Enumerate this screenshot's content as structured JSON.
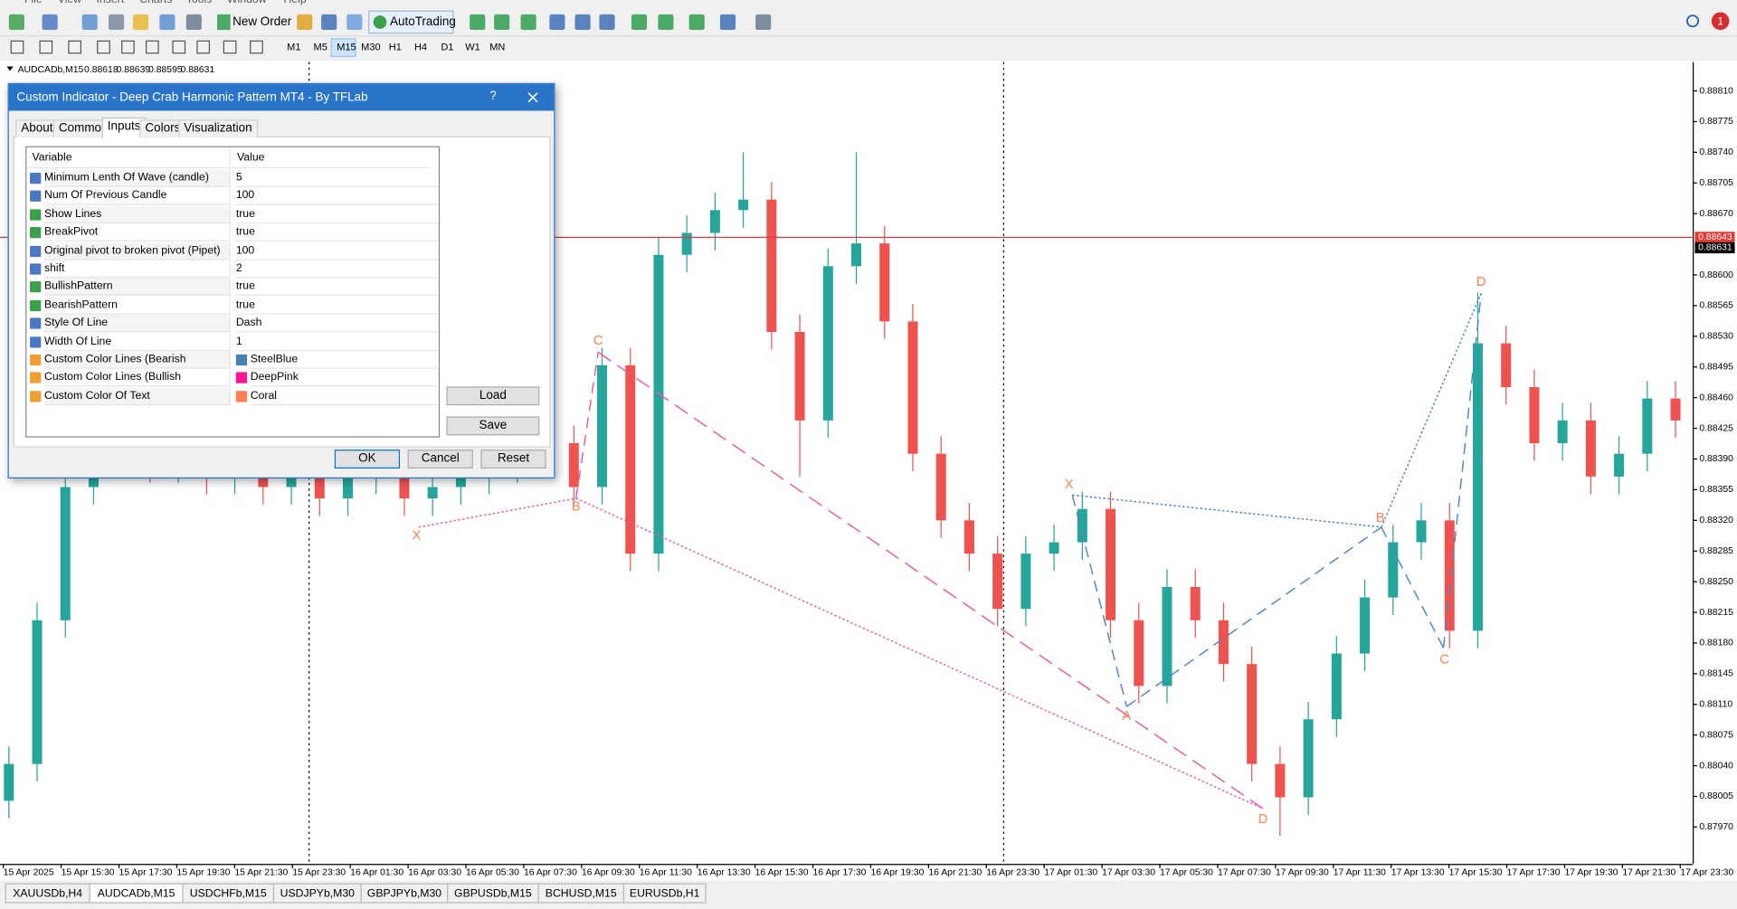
{
  "menu": [
    "File",
    "View",
    "Insert",
    "Charts",
    "Tools",
    "Window",
    "Help"
  ],
  "toolbar": {
    "new_order": "New Order",
    "autotrading": "AutoTrading",
    "timeframes": [
      "M1",
      "M5",
      "M15",
      "M30",
      "H1",
      "H4",
      "D1",
      "W1",
      "MN"
    ],
    "notifications": "1"
  },
  "chart_data": {
    "type": "candlestick",
    "symbol": "AUDCADb,M15",
    "ohlc": [
      "0.88618",
      "0.88639",
      "0.88595",
      "0.88631"
    ],
    "open": [
      0.88,
      0.88042,
      0.88206,
      0.88358,
      0.88408,
      0.88434,
      0.88383,
      0.88408,
      0.8837,
      0.88396,
      0.88358,
      0.88383,
      0.88345,
      0.8837,
      0.88383,
      0.88345,
      0.88358,
      0.8837,
      0.88383,
      0.88396,
      0.88408,
      0.88358,
      0.88497,
      0.88282,
      0.88623,
      0.88648,
      0.88674,
      0.88686,
      0.88535,
      0.88434,
      0.8861,
      0.88636,
      0.88547,
      0.88396,
      0.8832,
      0.88282,
      0.88219,
      0.88282,
      0.88295,
      0.88333,
      0.88206,
      0.88131,
      0.88244,
      0.88206,
      0.88156,
      0.88042,
      0.88004,
      0.88093,
      0.88168,
      0.88232,
      0.88295,
      0.8832,
      0.88194,
      0.88522,
      0.88472,
      0.88408,
      0.88434,
      0.8837,
      0.88396,
      0.88459
    ],
    "high": [
      0.88062,
      0.88226,
      0.88378,
      0.88428,
      0.88454,
      0.88454,
      0.88428,
      0.88428,
      0.88416,
      0.88416,
      0.88403,
      0.88403,
      0.8839,
      0.88403,
      0.88403,
      0.88378,
      0.8839,
      0.88403,
      0.88416,
      0.88428,
      0.88428,
      0.88517,
      0.88517,
      0.88643,
      0.88668,
      0.88694,
      0.8874,
      0.88706,
      0.88555,
      0.8863,
      0.8874,
      0.88656,
      0.88567,
      0.88416,
      0.8834,
      0.88302,
      0.88302,
      0.88315,
      0.88353,
      0.88353,
      0.88226,
      0.88264,
      0.88264,
      0.88226,
      0.88176,
      0.88062,
      0.88113,
      0.88188,
      0.88252,
      0.88315,
      0.8834,
      0.8834,
      0.8858,
      0.88542,
      0.88492,
      0.88454,
      0.88454,
      0.88416,
      0.88479,
      0.88479
    ],
    "low": [
      0.8798,
      0.88022,
      0.88186,
      0.88338,
      0.88388,
      0.88363,
      0.88363,
      0.8835,
      0.8835,
      0.88338,
      0.88338,
      0.88325,
      0.88325,
      0.8835,
      0.88325,
      0.88325,
      0.88338,
      0.8835,
      0.88363,
      0.88376,
      0.88338,
      0.88338,
      0.88262,
      0.88262,
      0.88603,
      0.88628,
      0.88654,
      0.88515,
      0.8837,
      0.88414,
      0.8859,
      0.88527,
      0.88376,
      0.883,
      0.88262,
      0.88199,
      0.88199,
      0.88262,
      0.88275,
      0.88186,
      0.88111,
      0.88111,
      0.88186,
      0.88136,
      0.88022,
      0.8796,
      0.87984,
      0.88073,
      0.88148,
      0.88212,
      0.88275,
      0.88174,
      0.88174,
      0.88452,
      0.88388,
      0.88388,
      0.8835,
      0.8835,
      0.88376,
      0.88414
    ],
    "close": [
      0.88042,
      0.88206,
      0.88358,
      0.88408,
      0.88434,
      0.88383,
      0.88408,
      0.8837,
      0.88396,
      0.88358,
      0.88383,
      0.88345,
      0.8837,
      0.88383,
      0.88345,
      0.88358,
      0.8837,
      0.88383,
      0.88396,
      0.88408,
      0.88358,
      0.88497,
      0.88282,
      0.88623,
      0.88648,
      0.88674,
      0.88686,
      0.88535,
      0.88434,
      0.8861,
      0.88636,
      0.88547,
      0.88396,
      0.8832,
      0.88282,
      0.88219,
      0.88282,
      0.88295,
      0.88333,
      0.88206,
      0.88131,
      0.88244,
      0.88206,
      0.88156,
      0.88042,
      0.88004,
      0.88093,
      0.88168,
      0.88232,
      0.88295,
      0.8832,
      0.88194,
      0.88522,
      0.88472,
      0.88408,
      0.88434,
      0.8837,
      0.88396,
      0.88459,
      0.88434
    ],
    "up_color": "#26a69a",
    "down_color": "#ef5350",
    "ylim": [
      0.87928,
      0.88843
    ],
    "yticks": [
      {
        "value": 0.8881,
        "label": "0.88810"
      },
      0.88775,
      {
        "value": 0.8874,
        "label": "0.88740"
      },
      0.88705,
      {
        "value": 0.8867,
        "label": "0.88670"
      },
      {
        "value": 0.886,
        "label": "0.88600"
      },
      0.88565,
      {
        "value": 0.8853,
        "label": "0.88530"
      },
      0.88495,
      {
        "value": 0.8846,
        "label": "0.88460"
      },
      0.88425,
      {
        "value": 0.8839,
        "label": "0.88390"
      },
      0.88355,
      {
        "value": 0.8832,
        "label": "0.88320"
      },
      0.88285,
      {
        "value": 0.8825,
        "label": "0.88250"
      },
      0.88215,
      {
        "value": 0.8818,
        "label": "0.88180"
      },
      0.88145,
      {
        "value": 0.8811,
        "label": "0.88110"
      },
      0.88075,
      {
        "value": 0.8804,
        "label": "0.88040"
      },
      0.88005,
      {
        "value": 0.8797,
        "label": "0.87970"
      }
    ],
    "price_lines": [
      {
        "value": 0.88643,
        "label": "0.88643",
        "color": "#e53935"
      },
      {
        "value": 0.88631,
        "label": "0.88631",
        "color": "#000000"
      }
    ],
    "x_labels": [
      "15 Apr 2025",
      "15 Apr 15:30",
      "15 Apr 17:30",
      "15 Apr 19:30",
      "15 Apr 21:30",
      "15 Apr 23:30",
      "16 Apr 01:30",
      "16 Apr 03:30",
      "16 Apr 05:30",
      "16 Apr 07:30",
      "16 Apr 09:30",
      "16 Apr 11:30",
      "16 Apr 13:30",
      "16 Apr 15:30",
      "16 Apr 17:30",
      "16 Apr 19:30",
      "16 Apr 21:30",
      "16 Apr 23:30",
      "17 Apr 01:30",
      "17 Apr 03:30",
      "17 Apr 05:30",
      "17 Apr 07:30",
      "17 Apr 09:30",
      "17 Apr 11:30",
      "17 Apr 13:30",
      "17 Apr 15:30",
      "17 Apr 17:30",
      "17 Apr 19:30",
      "17 Apr 21:30",
      "17 Apr 23:30"
    ],
    "patterns": [
      {
        "color": "#ec5aa8",
        "points": [
          "X",
          "B",
          "C",
          "D"
        ]
      },
      {
        "color": "#4f86c6",
        "points": [
          "X",
          "A",
          "B",
          "C",
          "D"
        ]
      }
    ],
    "pattern_text_color": "#ff7f50"
  },
  "dialog": {
    "title": "Custom Indicator - Deep Crab Harmonic Pattern MT4 - By TFLab",
    "help_button": "?",
    "tabs": [
      "About",
      "Common",
      "Inputs",
      "Colors",
      "Visualization"
    ],
    "header": [
      "Variable",
      "Value"
    ],
    "rows": [
      {
        "name": "Minimum Lenth Of Wave (candle)",
        "value": "5"
      },
      {
        "name": "Num Of Previous Candle",
        "value": "100"
      },
      {
        "name": "Show Lines",
        "value": "true"
      },
      {
        "name": "BreakPivot",
        "value": "true"
      },
      {
        "name": "Original pivot to broken pivot (Pipet)",
        "value": "100"
      },
      {
        "name": "shift",
        "value": "2"
      },
      {
        "name": "BullishPattern",
        "value": "true"
      },
      {
        "name": "BearishPattern",
        "value": "true"
      },
      {
        "name": "Style Of Line",
        "value": "Dash"
      },
      {
        "name": "Width Of Line",
        "value": "1"
      },
      {
        "name": "Custom Color Lines (Bearish Harmonic)",
        "value": "SteelBlue",
        "swatch": "#4682b4"
      },
      {
        "name": "Custom Color Lines (Bullish Harmonic)",
        "value": "DeepPink",
        "swatch": "#ff1493"
      },
      {
        "name": "Custom Color Of Text",
        "value": "Coral",
        "swatch": "#ff7f50"
      }
    ],
    "side_buttons": [
      "Load",
      "Save"
    ],
    "buttons": [
      "OK",
      "Cancel",
      "Reset"
    ]
  },
  "symbol_tabs": [
    "XAUUSDb,H4",
    "AUDCADb,M15",
    "USDCHFb,M15",
    "USDJPYb,M30",
    "GBPJPYb,M30",
    "GBPUSDb,M15",
    "BCHUSD,M15",
    "EURUSDb,H1"
  ]
}
